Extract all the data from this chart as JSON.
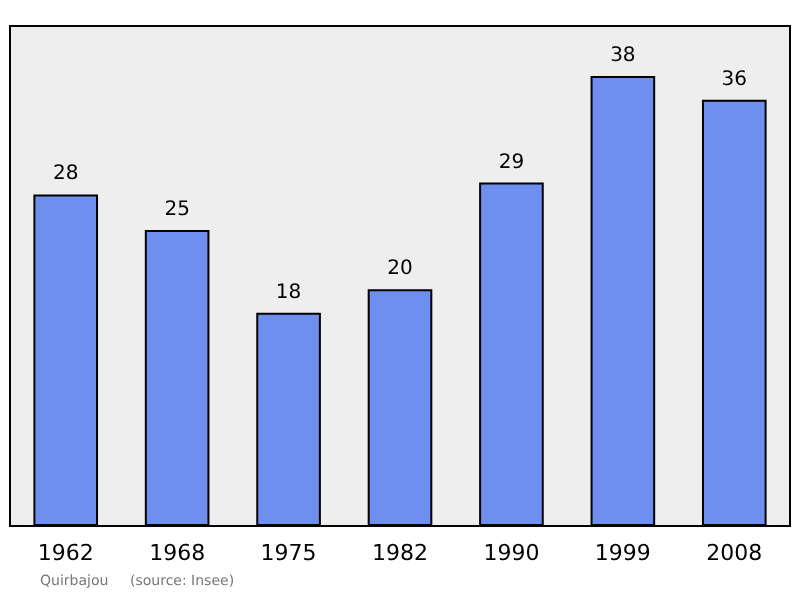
{
  "chart_data": {
    "type": "bar",
    "categories": [
      "1962",
      "1968",
      "1975",
      "1982",
      "1990",
      "1999",
      "2008"
    ],
    "values": [
      28,
      25,
      18,
      20,
      29,
      38,
      36
    ],
    "color": "#6f8ff0",
    "data_labels": true,
    "annotations": [
      "Quirbajou",
      "(source: Insee)"
    ]
  }
}
